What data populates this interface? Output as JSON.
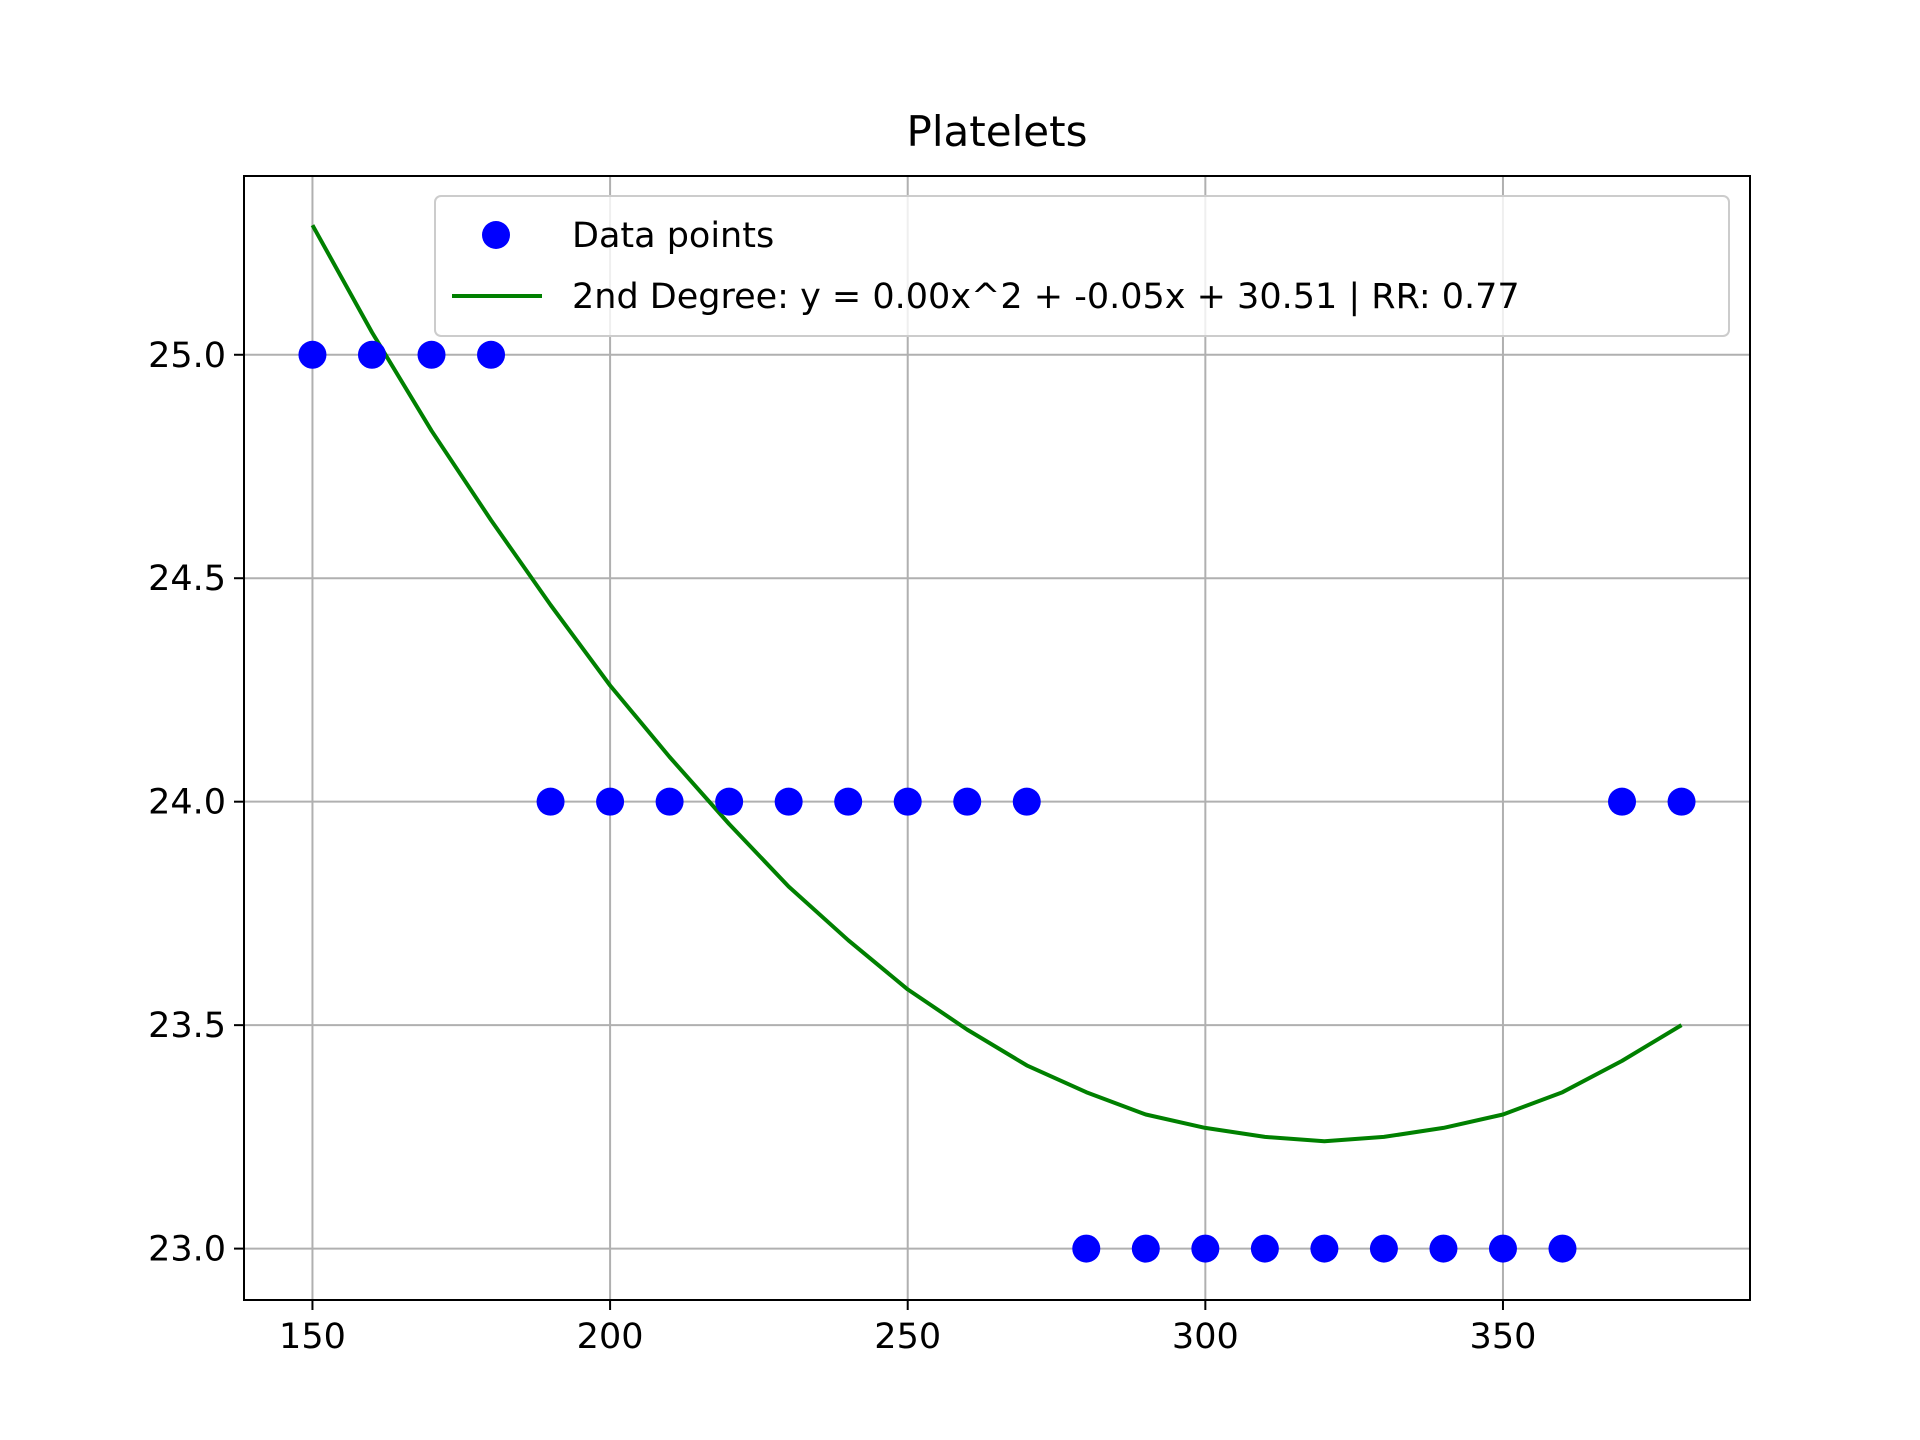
{
  "chart_data": {
    "type": "scatter",
    "title": "Platelets",
    "xlabel": "",
    "ylabel": "",
    "xlim": [
      138.5,
      391.5
    ],
    "ylim": [
      22.885,
      25.4
    ],
    "x_ticks": [
      150,
      200,
      250,
      300,
      350
    ],
    "y_ticks": [
      23.0,
      23.5,
      24.0,
      24.5,
      25.0
    ],
    "x_tick_labels": [
      "150",
      "200",
      "250",
      "300",
      "350"
    ],
    "y_tick_labels": [
      "23.0",
      "23.5",
      "24.0",
      "24.5",
      "25.0"
    ],
    "grid": true,
    "legend_position": "top-right",
    "series": [
      {
        "name": "Data points",
        "kind": "scatter",
        "color": "#0000ff",
        "x": [
          150,
          160,
          170,
          180,
          190,
          200,
          210,
          220,
          230,
          240,
          250,
          260,
          270,
          280,
          290,
          300,
          310,
          320,
          330,
          340,
          350,
          360,
          370,
          380
        ],
        "y": [
          25,
          25,
          25,
          25,
          24,
          24,
          24,
          24,
          24,
          24,
          24,
          24,
          24,
          23,
          23,
          23,
          23,
          23,
          23,
          23,
          23,
          23,
          24,
          24
        ]
      },
      {
        "name": "2nd Degree: y = 0.00x^2 + -0.05x + 30.51 | RR: 0.77",
        "kind": "line",
        "color": "#008000",
        "x": [
          150,
          160,
          170,
          180,
          190,
          200,
          210,
          220,
          230,
          240,
          250,
          260,
          270,
          280,
          290,
          300,
          310,
          320,
          330,
          340,
          350,
          360,
          370,
          380
        ],
        "y": [
          25.29,
          25.05,
          24.83,
          24.63,
          24.44,
          24.26,
          24.1,
          23.95,
          23.81,
          23.69,
          23.58,
          23.49,
          23.41,
          23.35,
          23.3,
          23.27,
          23.25,
          23.24,
          23.25,
          23.27,
          23.3,
          23.35,
          23.42,
          23.5
        ]
      }
    ]
  }
}
